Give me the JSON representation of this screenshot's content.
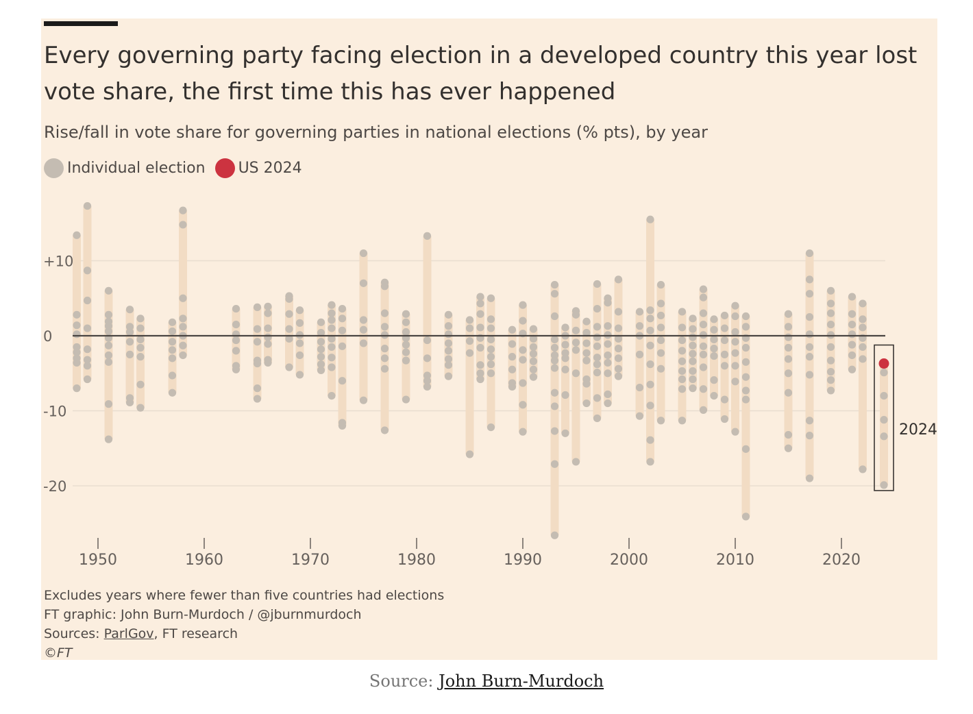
{
  "chart_data": {
    "type": "scatter",
    "title": "Every governing party facing election in a developed country this year lost vote share, the first time this has ever happened",
    "subtitle": "Rise/fall in vote share for governing parties in national elections (% pts), by year",
    "legend": [
      {
        "label": "Individual election",
        "color": "#c4bcb2"
      },
      {
        "label": "US 2024",
        "color": "#cc3340"
      }
    ],
    "xlim": [
      1948,
      2024
    ],
    "ylim": [
      -27,
      17
    ],
    "x_ticks": [
      "1950",
      "1960",
      "1970",
      "1980",
      "1990",
      "2000",
      "2010",
      "2020"
    ],
    "x_tick_values": [
      1950,
      1960,
      1970,
      1980,
      1990,
      2000,
      2010,
      2020
    ],
    "y_ticks": [
      "+10",
      "0",
      "-10",
      "-20"
    ],
    "y_tick_values": [
      10,
      0,
      -10,
      -20
    ],
    "highlight": {
      "label": "2024",
      "year": 2024,
      "us_value": -3.7
    },
    "years": [
      {
        "year": 1948,
        "values": [
          13.4,
          2.8,
          1.4,
          0.2,
          -1.5,
          -2.2,
          -3.0,
          -3.6,
          -7.0
        ]
      },
      {
        "year": 1949,
        "values": [
          17.3,
          8.7,
          4.7,
          1.0,
          -1.8,
          -3.2,
          -4.0,
          -5.8
        ]
      },
      {
        "year": 1951,
        "values": [
          6.0,
          2.8,
          1.9,
          1.3,
          0.6,
          -0.3,
          -1.3,
          -2.6,
          -3.5,
          -9.1,
          -13.8
        ]
      },
      {
        "year": 1953,
        "values": [
          3.5,
          1.2,
          0.5,
          -0.8,
          -2.5,
          -8.3,
          -8.9
        ]
      },
      {
        "year": 1954,
        "values": [
          2.3,
          1.0,
          -0.5,
          -1.6,
          -2.8,
          -6.5,
          -9.6
        ]
      },
      {
        "year": 1957,
        "values": [
          1.8,
          0.6,
          -0.8,
          -1.9,
          -3.0,
          -5.3,
          -7.6
        ]
      },
      {
        "year": 1958,
        "values": [
          16.7,
          14.8,
          5.0,
          2.3,
          1.2,
          0.0,
          -1.3,
          -2.6
        ]
      },
      {
        "year": 1963,
        "values": [
          3.6,
          1.5,
          0.2,
          -0.6,
          -2.0,
          -4.0,
          -4.5
        ]
      },
      {
        "year": 1965,
        "values": [
          3.8,
          0.9,
          -0.8,
          -3.3,
          -3.7,
          -7.0,
          -8.4
        ]
      },
      {
        "year": 1966,
        "values": [
          3.9,
          3.0,
          1.0,
          -0.2,
          -1.1,
          -3.2,
          -3.6
        ]
      },
      {
        "year": 1968,
        "values": [
          5.3,
          4.9,
          2.9,
          0.9,
          -0.4,
          -4.2
        ]
      },
      {
        "year": 1969,
        "values": [
          3.4,
          1.7,
          0.1,
          -1.0,
          -2.6,
          -5.2
        ]
      },
      {
        "year": 1971,
        "values": [
          1.8,
          0.4,
          -0.8,
          -1.8,
          -2.8,
          -3.8,
          -4.6
        ]
      },
      {
        "year": 1972,
        "values": [
          4.1,
          3.0,
          2.1,
          1.0,
          -0.4,
          -1.5,
          -2.9,
          -4.2,
          -8.0
        ]
      },
      {
        "year": 1973,
        "values": [
          3.6,
          2.3,
          0.7,
          -1.4,
          -6.0,
          -11.6,
          -12.0
        ]
      },
      {
        "year": 1975,
        "values": [
          11.0,
          7.0,
          2.1,
          0.8,
          -1.0,
          -8.6
        ]
      },
      {
        "year": 1977,
        "values": [
          7.1,
          6.6,
          3.0,
          1.2,
          0.1,
          -1.7,
          -3.0,
          -4.4,
          -12.6
        ]
      },
      {
        "year": 1979,
        "values": [
          2.9,
          1.8,
          0.5,
          -0.3,
          -1.2,
          -2.2,
          -3.3,
          -8.5
        ]
      },
      {
        "year": 1981,
        "values": [
          13.3,
          -0.6,
          -3.0,
          -5.3,
          -6.0,
          -6.8
        ]
      },
      {
        "year": 1983,
        "values": [
          2.8,
          1.3,
          0.2,
          -1.0,
          -2.0,
          -3.1,
          -3.9,
          -5.4
        ]
      },
      {
        "year": 1985,
        "values": [
          2.1,
          1.0,
          -0.7,
          -2.3,
          -15.8
        ]
      },
      {
        "year": 1986,
        "values": [
          5.2,
          4.3,
          2.9,
          1.1,
          -0.3,
          -1.6,
          -3.9,
          -5.0,
          -5.8
        ]
      },
      {
        "year": 1987,
        "values": [
          5.0,
          2.2,
          1.0,
          -0.5,
          -1.8,
          -2.8,
          -3.8,
          -5.0,
          -12.2
        ]
      },
      {
        "year": 1989,
        "values": [
          0.8,
          -1.1,
          -2.8,
          -4.5,
          -6.3,
          -6.8
        ]
      },
      {
        "year": 1990,
        "values": [
          4.1,
          2.0,
          0.3,
          -1.9,
          -3.2,
          -6.3,
          -9.2,
          -12.8
        ]
      },
      {
        "year": 1991,
        "values": [
          0.9,
          -0.4,
          -1.5,
          -2.4,
          -3.4,
          -4.5,
          -5.5
        ]
      },
      {
        "year": 1993,
        "values": [
          6.8,
          5.6,
          2.6,
          -0.5,
          -1.6,
          -2.6,
          -3.3,
          -4.3,
          -7.6,
          -9.4,
          -12.7,
          -17.1,
          -26.6
        ]
      },
      {
        "year": 1994,
        "values": [
          1.1,
          0.0,
          -1.2,
          -2.3,
          -3.0,
          -4.5,
          -7.9,
          -13.0
        ]
      },
      {
        "year": 1995,
        "values": [
          3.3,
          2.8,
          0.7,
          -0.9,
          -1.9,
          -5.0,
          -16.8
        ]
      },
      {
        "year": 1996,
        "values": [
          1.9,
          0.4,
          -1.0,
          -2.3,
          -3.3,
          -5.8,
          -6.4,
          -9.0
        ]
      },
      {
        "year": 1997,
        "values": [
          6.9,
          3.6,
          1.2,
          -0.2,
          -1.4,
          -2.9,
          -3.8,
          -4.9,
          -8.3,
          -11.0
        ]
      },
      {
        "year": 1998,
        "values": [
          5.0,
          4.4,
          1.3,
          0.1,
          -1.1,
          -2.6,
          -3.6,
          -5.0,
          -7.8,
          -9.0
        ]
      },
      {
        "year": 1999,
        "values": [
          7.5,
          3.2,
          1.0,
          -0.4,
          -1.7,
          -3.0,
          -4.4,
          -5.4
        ]
      },
      {
        "year": 2001,
        "values": [
          3.2,
          1.3,
          0.0,
          -2.5,
          -6.9,
          -10.7
        ]
      },
      {
        "year": 2002,
        "values": [
          15.5,
          3.4,
          2.3,
          0.7,
          -1.3,
          -3.8,
          -6.5,
          -9.3,
          -13.9,
          -16.8
        ]
      },
      {
        "year": 2003,
        "values": [
          6.8,
          4.3,
          2.7,
          1.1,
          -0.6,
          -2.3,
          -4.4,
          -11.3
        ]
      },
      {
        "year": 2005,
        "values": [
          3.2,
          1.1,
          -0.6,
          -2.0,
          -3.4,
          -4.7,
          -5.8,
          -7.1,
          -11.3
        ]
      },
      {
        "year": 2006,
        "values": [
          2.3,
          0.9,
          -0.2,
          -1.3,
          -2.4,
          -3.4,
          -4.7,
          -5.8,
          -7.0
        ]
      },
      {
        "year": 2007,
        "values": [
          6.2,
          5.1,
          3.0,
          1.5,
          0.1,
          -1.4,
          -2.5,
          -4.2,
          -7.1,
          -9.9
        ]
      },
      {
        "year": 2008,
        "values": [
          2.2,
          0.8,
          -0.5,
          -1.7,
          -2.7,
          -5.9,
          -8.0
        ]
      },
      {
        "year": 2009,
        "values": [
          2.7,
          1.0,
          -0.6,
          -2.5,
          -4.0,
          -8.5,
          -11.1
        ]
      },
      {
        "year": 2010,
        "values": [
          4.0,
          2.6,
          0.5,
          -0.8,
          -2.3,
          -4.0,
          -6.1,
          -12.8
        ]
      },
      {
        "year": 2011,
        "values": [
          2.6,
          1.2,
          -0.3,
          -1.6,
          -3.5,
          -5.5,
          -7.3,
          -8.5,
          -15.1,
          -24.1
        ]
      },
      {
        "year": 2015,
        "values": [
          2.9,
          1.2,
          -0.2,
          -1.6,
          -3.1,
          -5.0,
          -7.6,
          -13.2,
          -15.0
        ]
      },
      {
        "year": 2017,
        "values": [
          11.0,
          7.5,
          5.6,
          2.5,
          0.2,
          -1.5,
          -2.8,
          -5.2,
          -11.3,
          -13.3,
          -19.0
        ]
      },
      {
        "year": 2019,
        "values": [
          6.0,
          4.3,
          3.0,
          1.5,
          0.1,
          -1.5,
          -3.3,
          -4.8,
          -5.9,
          -7.3
        ]
      },
      {
        "year": 2021,
        "values": [
          5.2,
          2.9,
          1.5,
          0.2,
          -1.2,
          -2.6,
          -4.5
        ]
      },
      {
        "year": 2022,
        "values": [
          4.3,
          2.2,
          1.1,
          -0.3,
          -1.5,
          -3.1,
          -17.8
        ]
      },
      {
        "year": 2024,
        "values": [
          -4.9,
          -8.0,
          -11.2,
          -13.4,
          -19.9
        ]
      }
    ]
  },
  "notes": {
    "line1": "Excludes years where fewer than five countries had elections",
    "line2": "FT graphic: John Burn-Murdoch / @jburnmurdoch",
    "line3_prefix": "Sources: ",
    "line3_link": "ParlGov",
    "line3_suffix": ", FT research",
    "copyright": "©FT"
  },
  "source": {
    "prefix": "Source: ",
    "link": "John Burn-Murdoch"
  }
}
